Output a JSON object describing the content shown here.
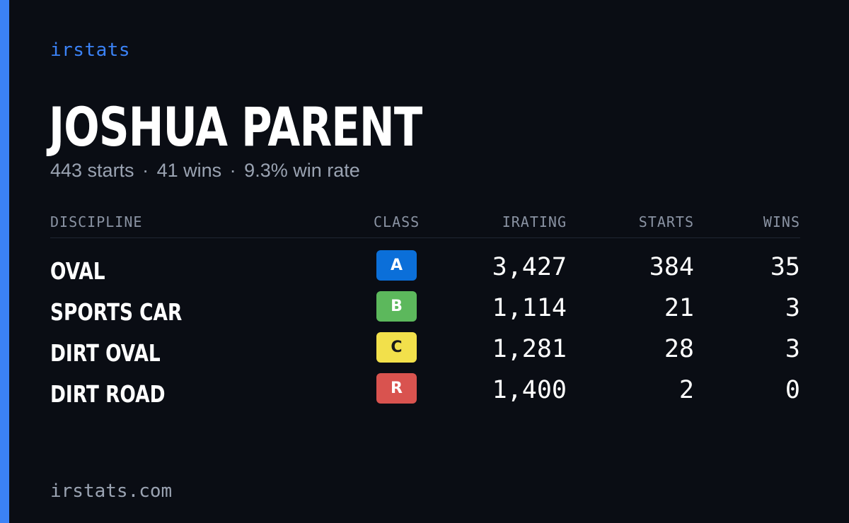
{
  "brand": "irstats",
  "driver": {
    "name": "JOSHUA PARENT",
    "starts_text": "443 starts",
    "wins_text": "41 wins",
    "win_rate_text": "9.3% win rate",
    "separator": "·"
  },
  "table": {
    "headers": {
      "discipline": "DISCIPLINE",
      "class": "CLASS",
      "irating": "IRATING",
      "starts": "STARTS",
      "wins": "WINS"
    },
    "rows": [
      {
        "discipline": "OVAL",
        "class": "A",
        "class_bg": "#0b6fd9",
        "class_fg": "#ffffff",
        "irating": "3,427",
        "starts": "384",
        "wins": "35"
      },
      {
        "discipline": "SPORTS CAR",
        "class": "B",
        "class_bg": "#5cb85c",
        "class_fg": "#ffffff",
        "irating": "1,114",
        "starts": "21",
        "wins": "3"
      },
      {
        "discipline": "DIRT OVAL",
        "class": "C",
        "class_bg": "#f2e04b",
        "class_fg": "#1a1a1a",
        "irating": "1,281",
        "starts": "28",
        "wins": "3"
      },
      {
        "discipline": "DIRT ROAD",
        "class": "R",
        "class_bg": "#d9534f",
        "class_fg": "#ffffff",
        "irating": "1,400",
        "starts": "2",
        "wins": "0"
      }
    ]
  },
  "footer": "irstats.com",
  "colors": {
    "background": "#0a0d14",
    "accent": "#3b82f6",
    "muted": "#9aa3b2"
  }
}
